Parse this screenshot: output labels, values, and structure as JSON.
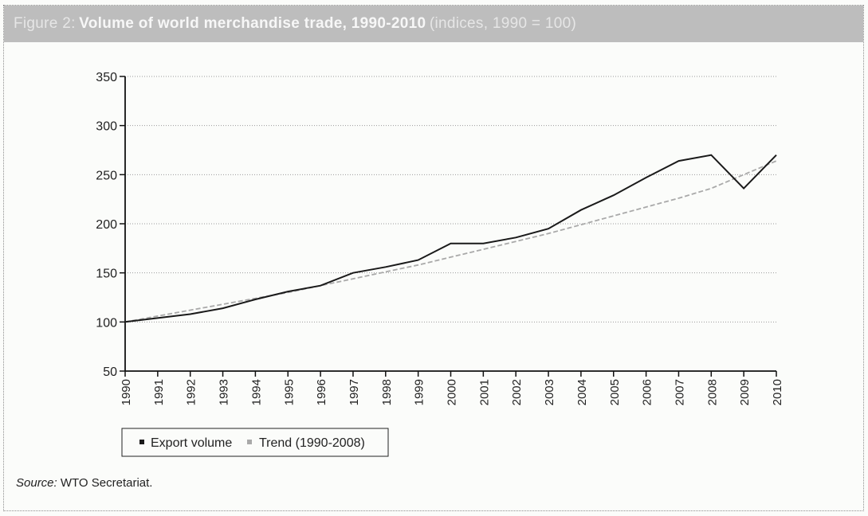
{
  "title": {
    "prefix": "Figure 2:",
    "main": "Volume of world merchandise trade, 1990-2010",
    "suffix": "(indices, 1990 = 100)"
  },
  "source": {
    "label": "Source:",
    "text": "WTO Secretariat."
  },
  "colors": {
    "export": "#1a1a1a",
    "trend": "#a9a9a9",
    "grid": "#9a9a9a",
    "axis": "#111111"
  },
  "chart_data": {
    "type": "line",
    "title": "Volume of world merchandise trade, 1990-2010 (indices, 1990 = 100)",
    "x": [
      "1990",
      "1991",
      "1992",
      "1993",
      "1994",
      "1995",
      "1996",
      "1997",
      "1998",
      "1999",
      "2000",
      "2001",
      "2002",
      "2003",
      "2004",
      "2005",
      "2006",
      "2007",
      "2008",
      "2009",
      "2010"
    ],
    "ylim": [
      50,
      350
    ],
    "yticks": [
      50,
      100,
      150,
      200,
      250,
      300,
      350
    ],
    "grid": true,
    "legend_position": "bottom-left",
    "series": [
      {
        "name": "Export volume",
        "style": "solid",
        "values": [
          100,
          104,
          108,
          114,
          123,
          131,
          137,
          150,
          156,
          163,
          180,
          180,
          186,
          195,
          214,
          229,
          247,
          264,
          270,
          236,
          270
        ]
      },
      {
        "name": "Trend (1990-2008)",
        "style": "dashed",
        "values": [
          100,
          106,
          112,
          118,
          124,
          130,
          137,
          144,
          151,
          158,
          166,
          174,
          182,
          190,
          199,
          208,
          217,
          226,
          236,
          250,
          264
        ]
      }
    ]
  }
}
